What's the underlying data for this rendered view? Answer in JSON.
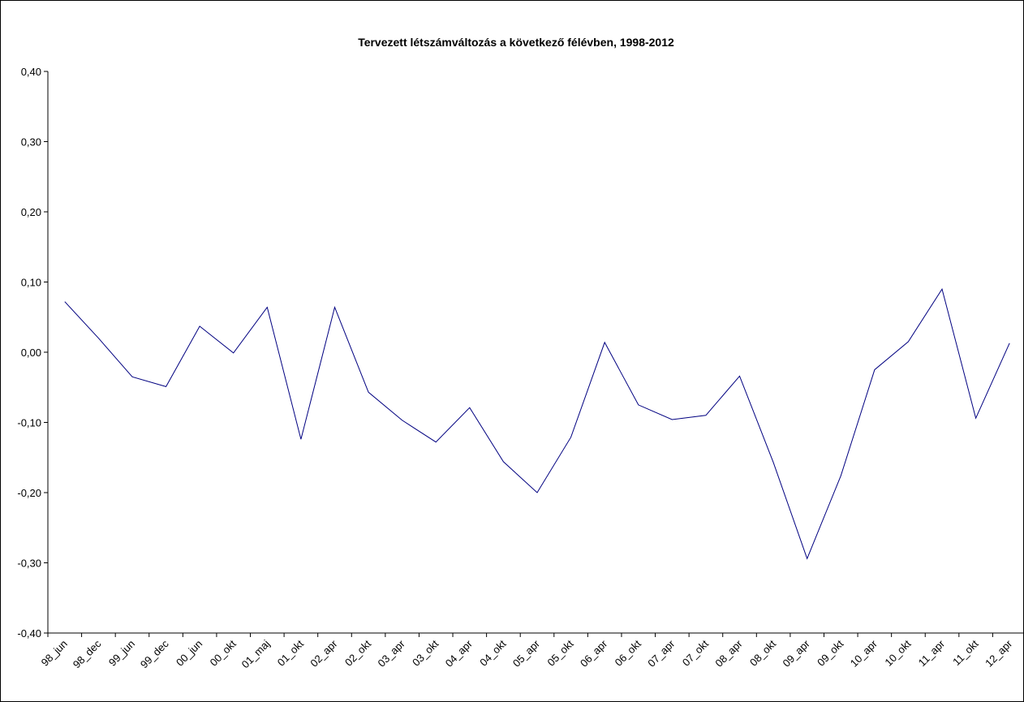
{
  "chart_data": {
    "type": "line",
    "title": "Tervezett létszámváltozás a következő félévben, 1998-2012",
    "categories": [
      "98_jun",
      "98_dec",
      "99_jun",
      "99_dec",
      "00_jun",
      "00_okt",
      "01_maj",
      "01_okt",
      "02_apr",
      "02_okt",
      "03_apr",
      "03_okt",
      "04_apr",
      "04_okt",
      "05_apr",
      "05_okt",
      "06_apr",
      "06_okt",
      "07_apr",
      "07_okt",
      "08_apr",
      "08_okt",
      "09_apr",
      "09_okt",
      "10_apr",
      "10_okt",
      "11_apr",
      "11_okt",
      "12_apr"
    ],
    "series": [
      {
        "color": "#000080",
        "values": [
          0.072,
          0.02,
          -0.035,
          -0.049,
          0.037,
          -0.001,
          0.064,
          -0.124,
          0.064,
          -0.057,
          -0.097,
          -0.128,
          -0.079,
          -0.156,
          -0.2,
          -0.121,
          0.014,
          -0.075,
          -0.096,
          -0.09,
          -0.034,
          -0.157,
          -0.294,
          -0.176,
          -0.025,
          0.015,
          0.09,
          -0.094,
          0.013
        ]
      }
    ],
    "ylim": [
      -0.4,
      0.4
    ],
    "yticks": [
      {
        "value": -0.4,
        "label": "-0,40"
      },
      {
        "value": -0.3,
        "label": "-0,30"
      },
      {
        "value": -0.2,
        "label": "-0,20"
      },
      {
        "value": -0.1,
        "label": "-0,10"
      },
      {
        "value": 0,
        "label": "0,00"
      },
      {
        "value": 0.1,
        "label": "0,10"
      },
      {
        "value": 0.2,
        "label": "0,20"
      },
      {
        "value": 0.3,
        "label": "0,30"
      },
      {
        "value": 0.4,
        "label": "0,40"
      }
    ]
  }
}
